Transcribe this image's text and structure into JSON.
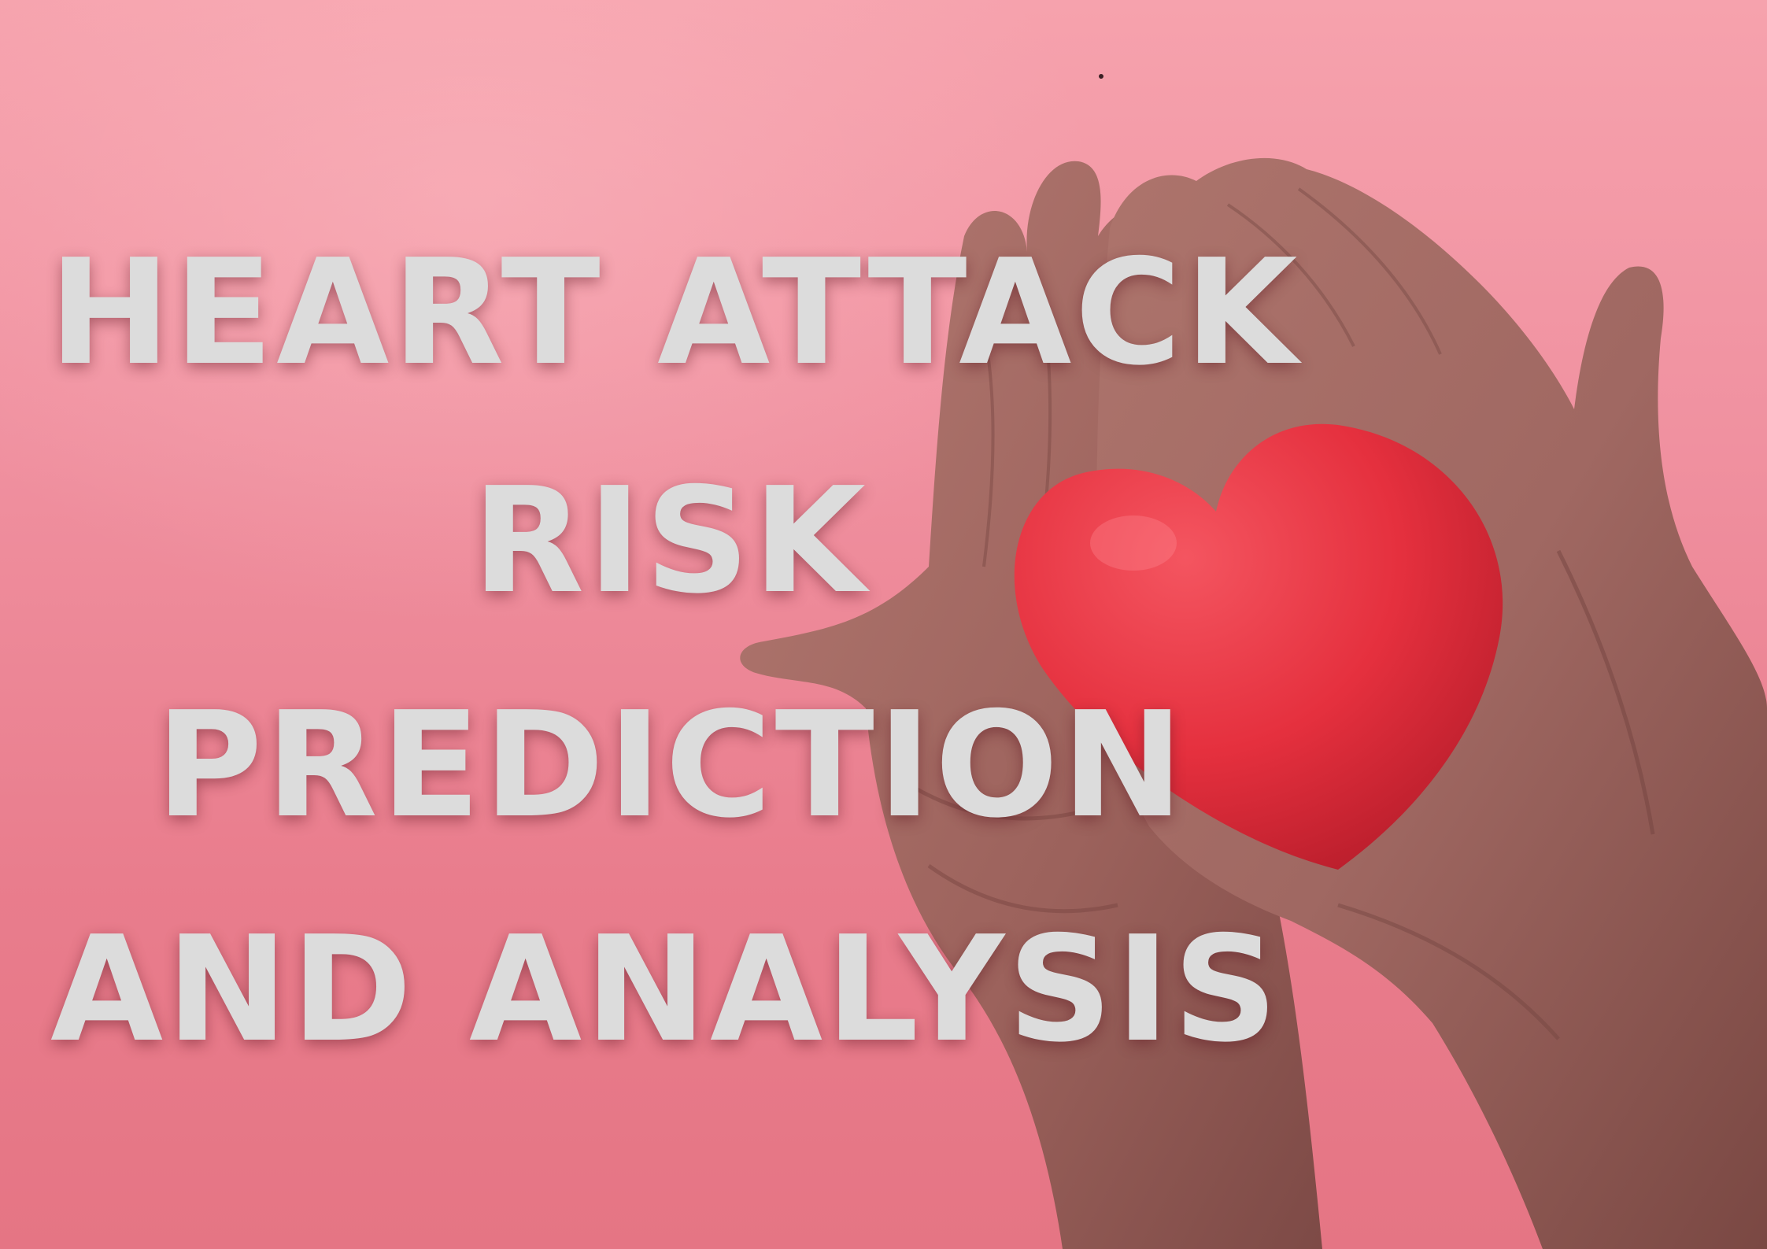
{
  "headline": {
    "line1": "HEART ATTACK",
    "line2": "RISK",
    "line3": "PREDICTION",
    "line4": "AND ANALYSIS"
  },
  "colors": {
    "background": "#f091a0",
    "text": "#dcdcdc",
    "heart": "#e8303d",
    "skin": "#a86e67"
  }
}
